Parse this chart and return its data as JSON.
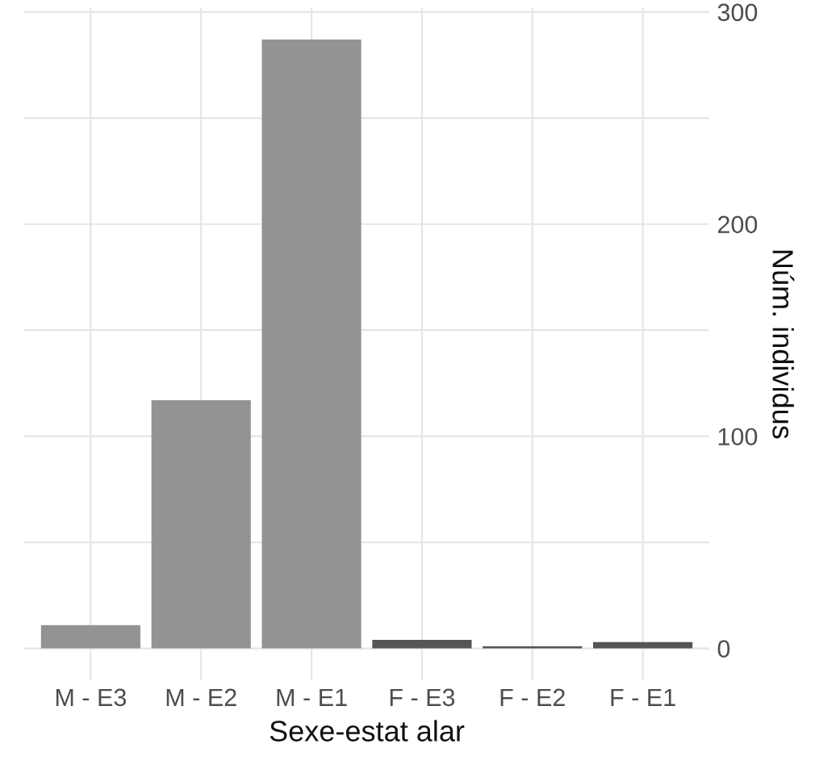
{
  "chart_data": {
    "type": "bar",
    "xlabel": "Sexe-estat alar",
    "ylabel": "Núm. individus",
    "categories": [
      "M - E3",
      "M - E2",
      "M - E1",
      "F - E3",
      "F - E2",
      "F - E1"
    ],
    "values": [
      11,
      117,
      287,
      4,
      1,
      3
    ],
    "colors": [
      "#939393",
      "#939393",
      "#939393",
      "#555555",
      "#555555",
      "#555555"
    ],
    "ylim": [
      -15,
      302
    ],
    "yticks": [
      0,
      {
        "value": 50,
        "label": null
      },
      100,
      {
        "value": 150,
        "label": null
      },
      200,
      {
        "value": 250,
        "label": null
      },
      300
    ],
    "grid": true
  }
}
